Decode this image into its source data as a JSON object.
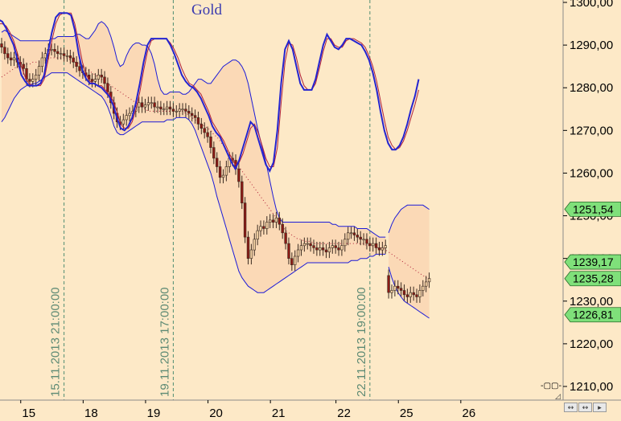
{
  "chart_data": {
    "type": "candlestick",
    "title": "Gold",
    "colors": {
      "background": "#fde9c7",
      "band_fill": "#fbd9b6",
      "band_line": "#1c1cd8",
      "candle_up": "#f3d1a4",
      "candle_down": "#8c1a14",
      "candle_wick": "#3a2a20",
      "moving_average": "#b0203a",
      "oscillator": "#2424d0",
      "oscillator_signal": "#b0203a",
      "vertical_marker": "#4f8c72",
      "last_price_badge": "#7fe07a",
      "axis_line": "#8a8a8a"
    },
    "y_axis": {
      "min": 1205,
      "max": 1302,
      "ticks": [
        1210,
        1220,
        1230,
        1240,
        1250,
        1260,
        1270,
        1280,
        1290,
        1300
      ],
      "tick_labels": [
        "1210,00",
        "1220,00",
        "1230,00",
        "1240,00",
        "1250,00",
        "1260,00",
        "1270,00",
        "1280,00",
        "1290,00",
        "1300,00"
      ]
    },
    "x_axis": {
      "bars": 138,
      "tick_labels": [
        {
          "bar": 2,
          "label": "15"
        },
        {
          "bar": 22,
          "label": "18"
        },
        {
          "bar": 42,
          "label": "19"
        },
        {
          "bar": 62,
          "label": "20"
        },
        {
          "bar": 82,
          "label": "21"
        },
        {
          "bar": 103,
          "label": "22"
        },
        {
          "bar": 123,
          "label": "25"
        },
        {
          "bar": 143,
          "label": "26"
        }
      ]
    },
    "vertical_markers": [
      {
        "bar": 20,
        "label": "15.11.2013 21:00:00"
      },
      {
        "bar": 55,
        "label": "19.11.2013 17:00:00"
      },
      {
        "bar": 118,
        "label": "22.11.2013 19:00:00"
      }
    ],
    "price_badges": [
      {
        "value": 1251.54,
        "label": "1251,54"
      },
      {
        "value": 1239.17,
        "label": "1239,17"
      },
      {
        "value": 1235.28,
        "label": "1235,28"
      },
      {
        "value": 1226.81,
        "label": "1226,81"
      }
    ],
    "candles_close": [
      1289.5,
      1288.0,
      1287.0,
      1286.5,
      1287.0,
      1286.0,
      1285.5,
      1284.5,
      1282.0,
      1281.5,
      1282.0,
      1283.0,
      1285.0,
      1287.0,
      1288.0,
      1289.0,
      1289.0,
      1288.5,
      1288.0,
      1288.0,
      1287.5,
      1287.5,
      1287.0,
      1286.0,
      1285.0,
      1284.0,
      1283.5,
      1283.0,
      1282.0,
      1281.5,
      1282.0,
      1283.0,
      1282.5,
      1281.0,
      1279.0,
      1276.5,
      1274.0,
      1272.0,
      1271.5,
      1272.5,
      1273.5,
      1274.0,
      1274.5,
      1275.5,
      1276.5,
      1275.5,
      1276.0,
      1276.5,
      1276.5,
      1275.5,
      1275.5,
      1275.0,
      1275.0,
      1275.5,
      1275.0,
      1274.5,
      1274.5,
      1275.0,
      1275.0,
      1274.5,
      1274.0,
      1273.5,
      1273.0,
      1271.5,
      1270.5,
      1269.5,
      1268.5,
      1266.0,
      1263.5,
      1261.5,
      1259.0,
      1259.5,
      1261.5,
      1263.5,
      1263.0,
      1261.0,
      1258.0,
      1253.0,
      1245.0,
      1240.0,
      1242.0,
      1244.5,
      1246.5,
      1247.5,
      1247.0,
      1248.5,
      1249.0,
      1248.5,
      1249.5,
      1248.0,
      1246.0,
      1243.5,
      1240.0,
      1238.5,
      1240.5,
      1242.0,
      1243.0,
      1243.5,
      1243.5,
      1243.0,
      1242.5,
      1242.0,
      1242.5,
      1242.0,
      1241.5,
      1242.5,
      1243.0,
      1242.5,
      1242.0,
      1243.0,
      1244.5,
      1246.0,
      1246.0,
      1245.5,
      1245.0,
      1244.5,
      1244.5,
      1243.5,
      1243.0,
      1243.5,
      1242.5,
      1242.0,
      1242.5,
      1243.0,
      1232.0,
      1232.5,
      1233.5,
      1233.0,
      1232.5,
      1231.5,
      1231.0,
      1232.0,
      1231.5,
      1231.0,
      1232.5,
      1233.5,
      1234.5,
      1235.3
    ],
    "band_upper": [
      1293.0,
      1293.5,
      1293.0,
      1292.5,
      1292.0,
      1291.5,
      1291.0,
      1291.0,
      1291.0,
      1291.0,
      1291.0,
      1291.0,
      1291.0,
      1291.0,
      1291.0,
      1291.0,
      1291.5,
      1291.5,
      1292.0,
      1292.0,
      1292.0,
      1292.0,
      1292.0,
      1292.0,
      1292.5,
      1292.5,
      1292.0,
      1291.5,
      1291.5,
      1292.5,
      1293.5,
      1295.0,
      1295.5,
      1295.0,
      1294.0,
      1292.0,
      1289.5,
      1286.5,
      1285.0,
      1285.5,
      1287.5,
      1289.0,
      1290.0,
      1290.5,
      1290.5,
      1290.0,
      1290.0,
      1289.5,
      1288.0,
      1285.5,
      1282.0,
      1279.5,
      1278.5,
      1278.5,
      1279.0,
      1279.0,
      1279.0,
      1279.0,
      1278.5,
      1278.5,
      1279.0,
      1280.0,
      1281.0,
      1282.0,
      1282.0,
      1281.5,
      1281.0,
      1281.0,
      1282.0,
      1283.0,
      1284.0,
      1285.0,
      1285.5,
      1286.0,
      1286.5,
      1286.5,
      1286.0,
      1285.0,
      1283.5,
      1281.0,
      1277.5,
      1274.0,
      1270.5,
      1267.5,
      1264.5,
      1261.5,
      1258.0,
      1254.5,
      1251.5,
      1249.5,
      1248.5,
      1248.5,
      1248.5,
      1248.5,
      1248.5,
      1248.5,
      1248.5,
      1248.5,
      1248.5,
      1248.5,
      1248.5,
      1248.5,
      1248.5,
      1248.5,
      1248.5,
      1248.5,
      1248.0,
      1248.0,
      1247.5,
      1247.5,
      1247.5,
      1247.5,
      1247.5,
      1247.5,
      1247.0,
      1247.0,
      1247.0,
      1247.0,
      1246.5,
      1246.0,
      1245.5,
      1245.0,
      1245.0,
      1245.0,
      1246.0,
      1248.0,
      1249.5,
      1250.5,
      1251.5,
      1252.0,
      1252.5,
      1252.5,
      1252.5,
      1252.5,
      1252.5,
      1252.5,
      1252.0,
      1251.5
    ],
    "band_lower": [
      1272.0,
      1273.0,
      1274.5,
      1276.0,
      1277.5,
      1278.5,
      1279.5,
      1280.0,
      1280.5,
      1280.5,
      1281.0,
      1281.0,
      1281.5,
      1282.0,
      1282.5,
      1283.0,
      1283.5,
      1283.5,
      1283.5,
      1283.5,
      1283.5,
      1283.5,
      1283.0,
      1282.5,
      1282.0,
      1281.5,
      1281.0,
      1280.5,
      1280.0,
      1279.5,
      1279.0,
      1278.5,
      1278.0,
      1277.0,
      1275.5,
      1273.5,
      1271.0,
      1269.5,
      1269.0,
      1269.0,
      1269.5,
      1270.0,
      1270.5,
      1271.0,
      1271.5,
      1272.0,
      1272.0,
      1272.0,
      1272.0,
      1272.0,
      1272.0,
      1272.0,
      1272.0,
      1272.5,
      1272.5,
      1272.5,
      1273.0,
      1273.0,
      1273.0,
      1273.0,
      1272.5,
      1271.5,
      1270.0,
      1268.0,
      1266.0,
      1264.0,
      1262.0,
      1260.0,
      1257.5,
      1254.5,
      1252.0,
      1249.5,
      1247.0,
      1244.5,
      1242.0,
      1239.5,
      1237.0,
      1235.5,
      1234.5,
      1233.5,
      1233.0,
      1232.5,
      1232.0,
      1232.0,
      1232.0,
      1232.5,
      1233.0,
      1233.5,
      1234.0,
      1234.5,
      1235.0,
      1235.5,
      1236.0,
      1236.5,
      1237.0,
      1237.5,
      1238.0,
      1238.5,
      1239.0,
      1239.0,
      1239.0,
      1239.0,
      1239.0,
      1239.0,
      1239.0,
      1239.0,
      1239.0,
      1239.0,
      1239.0,
      1239.0,
      1239.0,
      1239.0,
      1239.5,
      1239.5,
      1239.5,
      1240.0,
      1240.0,
      1240.0,
      1240.5,
      1240.5,
      1241.0,
      1241.0,
      1241.0,
      1241.0,
      1238.0,
      1235.5,
      1233.5,
      1232.0,
      1231.0,
      1230.0,
      1229.5,
      1229.0,
      1228.5,
      1228.0,
      1227.5,
      1227.0,
      1226.5,
      1226.0
    ],
    "moving_average": [
      1282.5,
      1283.0,
      1283.5,
      1284.0,
      1284.5,
      1285.0,
      1285.0,
      1285.5,
      1285.5,
      1285.5,
      1286.0,
      1286.0,
      1286.0,
      1286.5,
      1286.5,
      1287.0,
      1287.0,
      1287.0,
      1287.0,
      1287.0,
      1287.0,
      1287.0,
      1286.5,
      1286.0,
      1286.0,
      1285.5,
      1285.0,
      1284.5,
      1284.0,
      1283.5,
      1283.0,
      1282.5,
      1282.0,
      1281.5,
      1281.0,
      1280.5,
      1280.0,
      1279.5,
      1279.0,
      1278.5,
      1278.0,
      1277.5,
      1277.0,
      1276.5,
      1276.0,
      1275.5,
      1275.0,
      1274.5,
      1274.5,
      1274.5,
      1274.5,
      1274.5,
      1274.5,
      1274.5,
      1274.5,
      1274.5,
      1274.5,
      1274.5,
      1274.5,
      1274.0,
      1273.5,
      1273.0,
      1272.5,
      1272.0,
      1271.5,
      1271.0,
      1270.5,
      1270.0,
      1269.0,
      1268.5,
      1267.5,
      1266.5,
      1265.5,
      1264.5,
      1263.5,
      1262.5,
      1261.5,
      1260.5,
      1259.5,
      1258.5,
      1257.5,
      1256.5,
      1255.5,
      1254.5,
      1253.5,
      1252.5,
      1251.5,
      1250.5,
      1249.5,
      1248.5,
      1247.5,
      1246.5,
      1246.0,
      1245.5,
      1245.0,
      1244.5,
      1244.5,
      1244.0,
      1244.0,
      1244.0,
      1243.5,
      1243.5,
      1243.5,
      1243.5,
      1243.5,
      1243.5,
      1243.5,
      1243.5,
      1243.5,
      1243.5,
      1243.5,
      1243.5,
      1243.5,
      1243.5,
      1243.5,
      1243.5,
      1243.5,
      1243.0,
      1243.0,
      1243.0,
      1242.5,
      1242.5,
      1242.5,
      1242.0,
      1241.5,
      1241.0,
      1240.5,
      1240.0,
      1239.5,
      1239.0,
      1238.5,
      1238.0,
      1237.5,
      1237.0,
      1236.5,
      1236.0,
      1235.5,
      1235.0
    ],
    "oscillator": [
      1296.0,
      1295.5,
      1294.0,
      1292.0,
      1290.0,
      1286.5,
      1283.0,
      1281.5,
      1280.5,
      1280.5,
      1280.5,
      1281.0,
      1283.0,
      1288.5,
      1293.0,
      1296.5,
      1297.5,
      1297.5,
      1297.5,
      1297.0,
      1293.5,
      1288.0,
      1284.0,
      1282.0,
      1281.0,
      1281.0,
      1280.5,
      1280.0,
      1279.0,
      1278.0,
      1276.0,
      1273.0,
      1270.5,
      1270.0,
      1271.0,
      1273.0,
      1276.5,
      1281.0,
      1286.0,
      1290.0,
      1291.5,
      1291.5,
      1291.5,
      1291.5,
      1291.5,
      1290.0,
      1288.0,
      1285.5,
      1283.0,
      1281.5,
      1280.5,
      1280.0,
      1279.0,
      1277.5,
      1275.5,
      1273.5,
      1271.0,
      1269.5,
      1268.5,
      1266.5,
      1264.5,
      1262.5,
      1261.0,
      1263.0,
      1266.0,
      1269.0,
      1272.0,
      1271.0,
      1268.0,
      1265.0,
      1262.0,
      1260.5,
      1262.5,
      1270.0,
      1281.0,
      1289.0,
      1291.0,
      1289.0,
      1285.0,
      1281.0,
      1279.5,
      1279.5,
      1279.5,
      1282.0,
      1286.0,
      1290.0,
      1292.5,
      1291.0,
      1289.5,
      1289.0,
      1290.0,
      1291.5,
      1291.5,
      1291.0,
      1290.5,
      1290.0,
      1288.5,
      1286.5,
      1283.5,
      1279.5,
      1274.5,
      1270.0,
      1267.0,
      1265.5,
      1265.5,
      1266.5,
      1268.5,
      1271.5,
      1275.0,
      1278.0,
      1282.0
    ],
    "oscillator_signal": [
      1295.0,
      1295.0,
      1294.5,
      1293.0,
      1291.0,
      1288.0,
      1285.0,
      1282.5,
      1281.0,
      1280.5,
      1280.5,
      1280.5,
      1282.0,
      1286.5,
      1291.0,
      1295.0,
      1297.0,
      1297.5,
      1297.5,
      1297.5,
      1295.0,
      1290.5,
      1286.0,
      1283.0,
      1281.5,
      1281.0,
      1280.5,
      1280.5,
      1279.5,
      1278.5,
      1277.0,
      1274.5,
      1271.5,
      1270.5,
      1270.5,
      1272.0,
      1275.0,
      1279.0,
      1284.0,
      1288.5,
      1291.0,
      1291.5,
      1291.5,
      1291.5,
      1291.5,
      1290.5,
      1289.0,
      1287.0,
      1284.5,
      1282.5,
      1281.0,
      1280.5,
      1279.5,
      1278.5,
      1276.5,
      1274.5,
      1272.0,
      1270.5,
      1269.0,
      1267.5,
      1265.5,
      1263.5,
      1262.0,
      1262.5,
      1264.5,
      1267.5,
      1270.5,
      1271.5,
      1269.5,
      1266.5,
      1263.5,
      1261.5,
      1261.5,
      1266.0,
      1276.5,
      1286.0,
      1290.5,
      1290.0,
      1287.0,
      1283.0,
      1280.5,
      1279.5,
      1279.5,
      1281.0,
      1284.5,
      1288.5,
      1291.5,
      1291.5,
      1290.0,
      1289.5,
      1289.5,
      1291.0,
      1291.5,
      1291.5,
      1291.0,
      1290.5,
      1289.5,
      1287.5,
      1285.0,
      1281.5,
      1277.0,
      1272.5,
      1268.5,
      1266.5,
      1265.5,
      1266.0,
      1267.5,
      1270.0,
      1273.0,
      1276.0,
      1279.5
    ]
  },
  "controls": {
    "zoom_handle": "-▢▢-",
    "corner_glyph": "◿",
    "scroll_buttons": [
      "↔",
      "↔",
      "▸"
    ],
    "scroll_icons": [
      "scroll-left-icon",
      "scroll-both-icon",
      "scroll-right-icon"
    ]
  }
}
